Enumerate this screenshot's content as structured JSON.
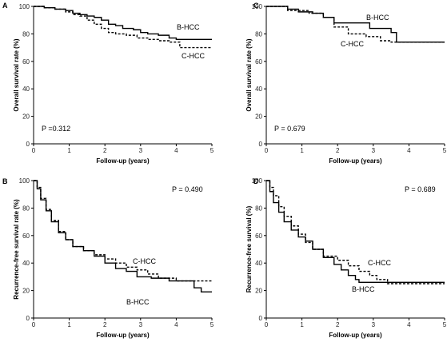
{
  "figure": {
    "panel_count": 4
  },
  "chart_data": [
    {
      "type": "line",
      "panel_letter": "A",
      "xlabel": "Follow-up (years)",
      "ylabel": "Overall survival rate (%)",
      "xlim": [
        0,
        5
      ],
      "ylim": [
        0,
        100
      ],
      "xticks": [
        "0",
        "1",
        "2",
        "3",
        "4",
        "5"
      ],
      "yticks": [
        "0",
        "20",
        "40",
        "60",
        "80",
        "100"
      ],
      "annotation": "P =0.312",
      "annotation_position": "bottom-left",
      "series": [
        {
          "name": "B-HCC",
          "style": "solid",
          "x": [
            0,
            0.3,
            0.6,
            0.9,
            1.1,
            1.3,
            1.5,
            1.7,
            1.9,
            2.1,
            2.3,
            2.5,
            2.8,
            3.0,
            3.2,
            3.5,
            3.8,
            4.0,
            5.0
          ],
          "y": [
            100,
            99,
            98,
            97,
            95,
            94,
            93,
            92,
            90,
            87,
            86,
            84,
            83,
            81,
            80,
            79,
            77,
            76,
            76
          ]
        },
        {
          "name": "C-HCC",
          "style": "dashed",
          "x": [
            0,
            0.3,
            0.6,
            0.9,
            1.1,
            1.3,
            1.5,
            1.7,
            1.9,
            2.1,
            2.3,
            2.6,
            2.9,
            3.2,
            3.5,
            3.8,
            4.1,
            5.0
          ],
          "y": [
            100,
            99,
            98,
            96,
            94,
            93,
            90,
            87,
            84,
            81,
            80,
            79,
            77,
            76,
            75,
            74,
            70,
            70
          ]
        }
      ]
    },
    {
      "type": "line",
      "panel_letter": "C",
      "xlabel": "Follow-up (years)",
      "ylabel": "Overall survival rate (%)",
      "xlim": [
        0,
        5
      ],
      "ylim": [
        0,
        100
      ],
      "xticks": [
        "0",
        "1",
        "2",
        "3",
        "4",
        "5"
      ],
      "yticks": [
        "0",
        "20",
        "40",
        "60",
        "80",
        "100"
      ],
      "annotation": "P = 0.679",
      "annotation_position": "bottom-left",
      "series": [
        {
          "name": "B-HCC",
          "style": "solid",
          "x": [
            0,
            0.6,
            0.9,
            1.3,
            1.6,
            1.9,
            2.5,
            2.9,
            3.3,
            3.5,
            3.65,
            5.0
          ],
          "y": [
            100,
            98,
            96,
            95,
            92,
            88,
            88,
            84,
            84,
            81,
            74,
            74
          ]
        },
        {
          "name": "C-HCC",
          "style": "dashed",
          "x": [
            0,
            0.6,
            1.2,
            1.6,
            1.9,
            2.3,
            2.8,
            3.2,
            3.5,
            5.0
          ],
          "y": [
            100,
            97,
            95,
            92,
            85,
            80,
            78,
            75,
            74,
            74
          ]
        }
      ]
    },
    {
      "type": "line",
      "panel_letter": "B",
      "xlabel": "Follow-up (years)",
      "ylabel": "Recurrence-free survival rate (%)",
      "xlim": [
        0,
        5
      ],
      "ylim": [
        0,
        100
      ],
      "xticks": [
        "0",
        "1",
        "2",
        "3",
        "4",
        "5"
      ],
      "yticks": [
        "0",
        "20",
        "40",
        "60",
        "80",
        "100"
      ],
      "annotation": "P = 0.490",
      "annotation_position": "top-right",
      "series": [
        {
          "name": "B-HCC",
          "style": "solid",
          "x": [
            0,
            0.1,
            0.2,
            0.35,
            0.5,
            0.7,
            0.9,
            1.1,
            1.4,
            1.7,
            2.0,
            2.3,
            2.6,
            2.9,
            3.3,
            3.8,
            4.2,
            4.5,
            4.7,
            5.0
          ],
          "y": [
            100,
            94,
            86,
            78,
            70,
            62,
            57,
            52,
            49,
            45,
            40,
            36,
            34,
            30,
            29,
            27,
            27,
            22,
            19,
            19
          ]
        },
        {
          "name": "C-HCC",
          "style": "dashed",
          "x": [
            0,
            0.1,
            0.2,
            0.35,
            0.5,
            0.7,
            0.9,
            1.1,
            1.4,
            1.7,
            2.0,
            2.3,
            2.6,
            2.9,
            3.2,
            3.5,
            4.0,
            5.0
          ],
          "y": [
            100,
            95,
            87,
            79,
            71,
            63,
            57,
            52,
            49,
            46,
            43,
            40,
            37,
            35,
            32,
            29,
            27,
            27
          ]
        }
      ]
    },
    {
      "type": "line",
      "panel_letter": "D",
      "xlabel": "Follow-up (years)",
      "ylabel": "Recurrence-free survival (%)",
      "xlim": [
        0,
        5
      ],
      "ylim": [
        0,
        100
      ],
      "xticks": [
        "0",
        "1",
        "2",
        "3",
        "4",
        "5"
      ],
      "yticks": [
        "0",
        "20",
        "40",
        "60",
        "80",
        "100"
      ],
      "annotation": "P = 0.689",
      "annotation_position": "top-right",
      "series": [
        {
          "name": "B-HCC",
          "style": "solid",
          "x": [
            0,
            0.1,
            0.2,
            0.35,
            0.5,
            0.7,
            0.9,
            1.1,
            1.3,
            1.6,
            1.9,
            2.1,
            2.3,
            2.5,
            2.6,
            5.0
          ],
          "y": [
            100,
            92,
            84,
            77,
            70,
            64,
            59,
            56,
            50,
            44,
            39,
            35,
            31,
            28,
            26,
            26
          ]
        },
        {
          "name": "C-HCC",
          "style": "dashed",
          "x": [
            0,
            0.1,
            0.2,
            0.35,
            0.5,
            0.7,
            0.9,
            1.1,
            1.3,
            1.6,
            2.0,
            2.3,
            2.6,
            2.9,
            3.1,
            3.4,
            5.0
          ],
          "y": [
            100,
            95,
            89,
            81,
            74,
            67,
            61,
            55,
            50,
            45,
            42,
            38,
            34,
            31,
            28,
            25,
            25
          ]
        }
      ]
    }
  ]
}
